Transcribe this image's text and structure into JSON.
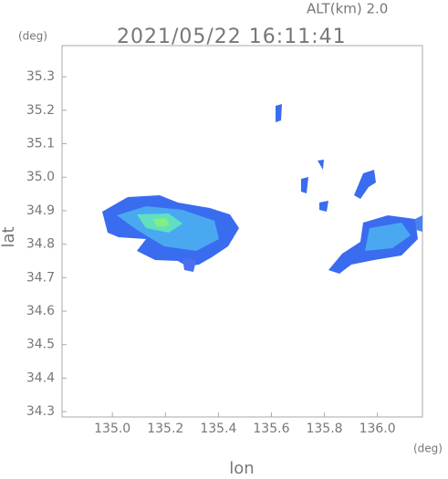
{
  "chart_data": {
    "type": "map",
    "title": "2021/05/22 16:11:41",
    "subtitle": "ALT(km) 2.0",
    "y_unit": "(deg)",
    "x_unit": "(deg)",
    "x_label": "lon",
    "y_label": "lat",
    "xlim": [
      134.81,
      136.17
    ],
    "ylim": [
      34.284,
      35.393
    ],
    "xticks": [
      {
        "value": 135.0,
        "label": "135.0"
      },
      135.2,
      135.4,
      135.6,
      135.8,
      {
        "value": 136.0,
        "label": "136.0"
      }
    ],
    "yticks": [
      34.3,
      34.4,
      34.5,
      34.6,
      34.7,
      34.8,
      34.9,
      {
        "value": 35.0,
        "label": "35.0"
      },
      35.1,
      35.2,
      35.3
    ]
  }
}
